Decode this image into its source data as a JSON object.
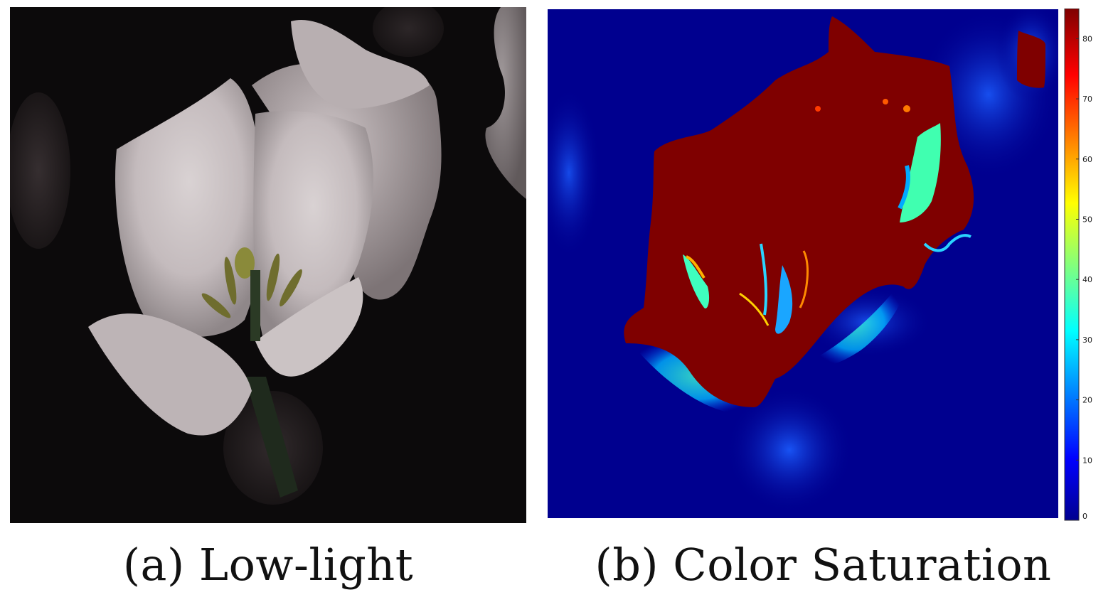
{
  "figure": {
    "panels": [
      {
        "id": "a",
        "caption": "(a) Low-light",
        "image_description_icon": "low-light-flower-photo"
      },
      {
        "id": "b",
        "caption": "(b) Color Saturation",
        "image_description_icon": "saturation-heatmap"
      }
    ],
    "colorbar": {
      "ticks": [
        "0",
        "10",
        "20",
        "30",
        "40",
        "50",
        "60",
        "70",
        "80"
      ],
      "min": 0,
      "max": 85,
      "colormap": "jet"
    },
    "colors": {
      "background": "#ffffff",
      "dark_photo_bg": "#0c0a0b",
      "petal": "#cfc7c9",
      "heat_low": "#00008f",
      "heat_high": "#7f0000",
      "heat_mid": "#00ffff"
    }
  }
}
